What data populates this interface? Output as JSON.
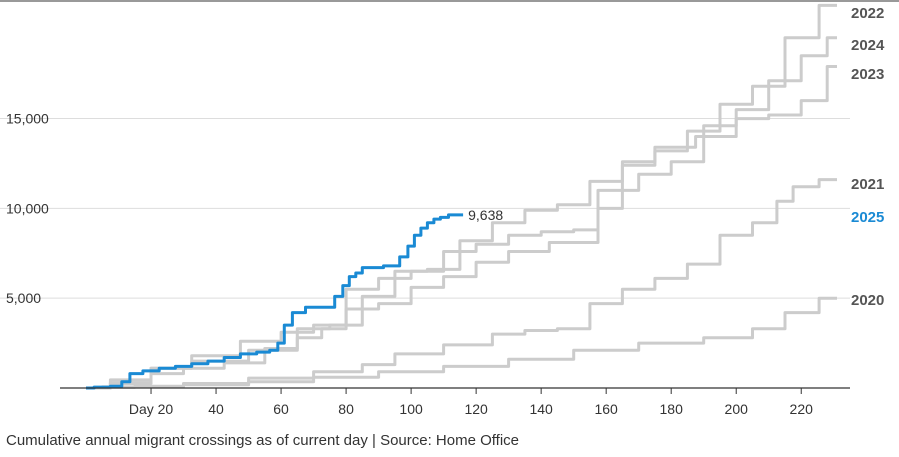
{
  "chart_data": {
    "type": "line",
    "caption": "Cumulative annual migrant crossings as of current day | Source: Home Office",
    "x_ticks": [
      {
        "value": 20,
        "label": "Day 20"
      },
      {
        "value": 40,
        "label": "40"
      },
      {
        "value": 60,
        "label": "60"
      },
      {
        "value": 80,
        "label": "80"
      },
      {
        "value": 100,
        "label": "100"
      },
      {
        "value": 120,
        "label": "120"
      },
      {
        "value": 140,
        "label": "140"
      },
      {
        "value": 160,
        "label": "160"
      },
      {
        "value": 180,
        "label": "180"
      },
      {
        "value": 200,
        "label": "200"
      },
      {
        "value": 220,
        "label": "220"
      }
    ],
    "y_ticks": [
      {
        "value": 5000,
        "label": "5,000"
      },
      {
        "value": 10000,
        "label": "10,000"
      },
      {
        "value": 15000,
        "label": "15,000"
      }
    ],
    "xlim": [
      -8,
      235
    ],
    "ylim": [
      0,
      21600
    ],
    "grid": "horizontal",
    "colors": {
      "highlight": "#1a8ad4",
      "other": "#cccccc",
      "label_other": "#555555",
      "axis": "#333333",
      "grid": "#dddddd"
    },
    "highlight_value_label": "9,638",
    "series": [
      {
        "name": "2020",
        "highlight": false,
        "x": [
          0,
          10,
          20,
          40,
          60,
          80,
          100,
          120,
          140,
          160,
          180,
          200,
          210,
          220,
          231
        ],
        "y": [
          0,
          40,
          80,
          180,
          350,
          600,
          900,
          1200,
          1600,
          2100,
          2500,
          2800,
          3300,
          4200,
          5000
        ]
      },
      {
        "name": "2021",
        "highlight": false,
        "x": [
          0,
          10,
          20,
          40,
          60,
          80,
          90,
          100,
          120,
          130,
          140,
          150,
          160,
          170,
          180,
          190,
          200,
          210,
          215,
          220,
          231
        ],
        "y": [
          0,
          60,
          100,
          250,
          550,
          900,
          1300,
          1900,
          2400,
          3000,
          3200,
          3300,
          4700,
          5500,
          6100,
          6900,
          8500,
          9200,
          10400,
          11200,
          11600
        ]
      },
      {
        "name": "2022",
        "highlight": false,
        "x": [
          0,
          15,
          25,
          40,
          60,
          70,
          80,
          90,
          100,
          110,
          120,
          130,
          140,
          150,
          160,
          170,
          180,
          190,
          200,
          210,
          220,
          231
        ],
        "y": [
          0,
          300,
          1100,
          1500,
          2100,
          3300,
          3500,
          5100,
          6500,
          6600,
          8200,
          9200,
          9900,
          10200,
          11500,
          12600,
          13200,
          14300,
          15800,
          16800,
          19500,
          21300
        ]
      },
      {
        "name": "2023",
        "highlight": false,
        "x": [
          0,
          15,
          25,
          40,
          55,
          65,
          75,
          85,
          95,
          105,
          115,
          125,
          135,
          145,
          155,
          160,
          170,
          180,
          195,
          205,
          215,
          225,
          231
        ],
        "y": [
          0,
          450,
          1100,
          1800,
          2600,
          3100,
          3500,
          5500,
          6100,
          6500,
          7600,
          8000,
          8500,
          8700,
          8800,
          10000,
          12400,
          13400,
          14000,
          15000,
          15200,
          16000,
          17900
        ]
      },
      {
        "name": "2024",
        "highlight": false,
        "x": [
          0,
          15,
          25,
          35,
          50,
          60,
          70,
          75,
          85,
          95,
          105,
          115,
          125,
          135,
          150,
          165,
          175,
          185,
          195,
          205,
          215,
          225,
          231
        ],
        "y": [
          0,
          250,
          800,
          1100,
          1400,
          2200,
          2800,
          3300,
          4400,
          4700,
          5600,
          6200,
          7000,
          7600,
          8100,
          11000,
          11900,
          12600,
          14600,
          15500,
          17100,
          18500,
          19500
        ]
      },
      {
        "name": "2025",
        "highlight": true,
        "x": [
          0,
          5,
          10,
          12,
          15,
          20,
          25,
          30,
          35,
          40,
          45,
          50,
          55,
          58,
          60,
          62,
          65,
          70,
          75,
          78,
          80,
          82,
          84,
          86,
          88,
          95,
          98,
          100,
          102,
          104,
          106,
          108,
          110,
          113,
          116
        ],
        "y": [
          0,
          50,
          100,
          350,
          800,
          950,
          1100,
          1200,
          1350,
          1500,
          1700,
          1900,
          2000,
          2100,
          2500,
          3500,
          4200,
          4500,
          4500,
          5100,
          5700,
          6200,
          6400,
          6700,
          6700,
          6800,
          7300,
          7900,
          8500,
          8900,
          9200,
          9400,
          9500,
          9638,
          9638
        ]
      }
    ]
  }
}
